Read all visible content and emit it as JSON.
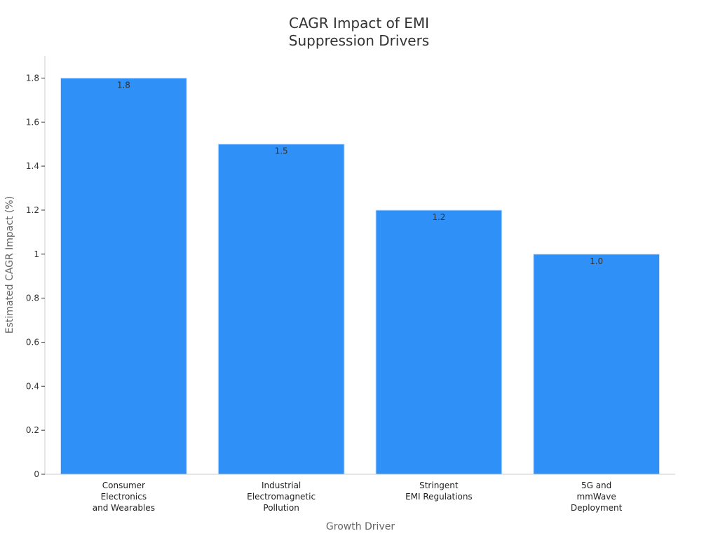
{
  "chart_data": {
    "type": "bar",
    "title_lines": [
      "CAGR Impact of EMI",
      "Suppression Drivers"
    ],
    "xlabel": "Growth Driver",
    "ylabel": "Estimated CAGR Impact (%)",
    "categories": [
      [
        "Consumer",
        "Electronics",
        "and Wearables"
      ],
      [
        "Industrial",
        "Electromagnetic",
        "Pollution"
      ],
      [
        "Stringent",
        "EMI Regulations"
      ],
      [
        "5G and",
        "mmWave",
        "Deployment"
      ]
    ],
    "values": [
      1.8,
      1.5,
      1.2,
      1.0
    ],
    "data_labels": [
      "1.8",
      "1.5",
      "1.2",
      "1.0"
    ],
    "ylim": [
      0,
      1.9
    ],
    "yticks": [
      0,
      0.2,
      0.4,
      0.6,
      0.8,
      1,
      1.2,
      1.4,
      1.6,
      1.8
    ],
    "ytick_labels": [
      "0",
      "0.2",
      "0.4",
      "0.6",
      "0.8",
      "1",
      "1.2",
      "1.4",
      "1.6",
      "1.8"
    ],
    "bar_color": "#2f90f8",
    "grid": false,
    "legend": "none"
  }
}
